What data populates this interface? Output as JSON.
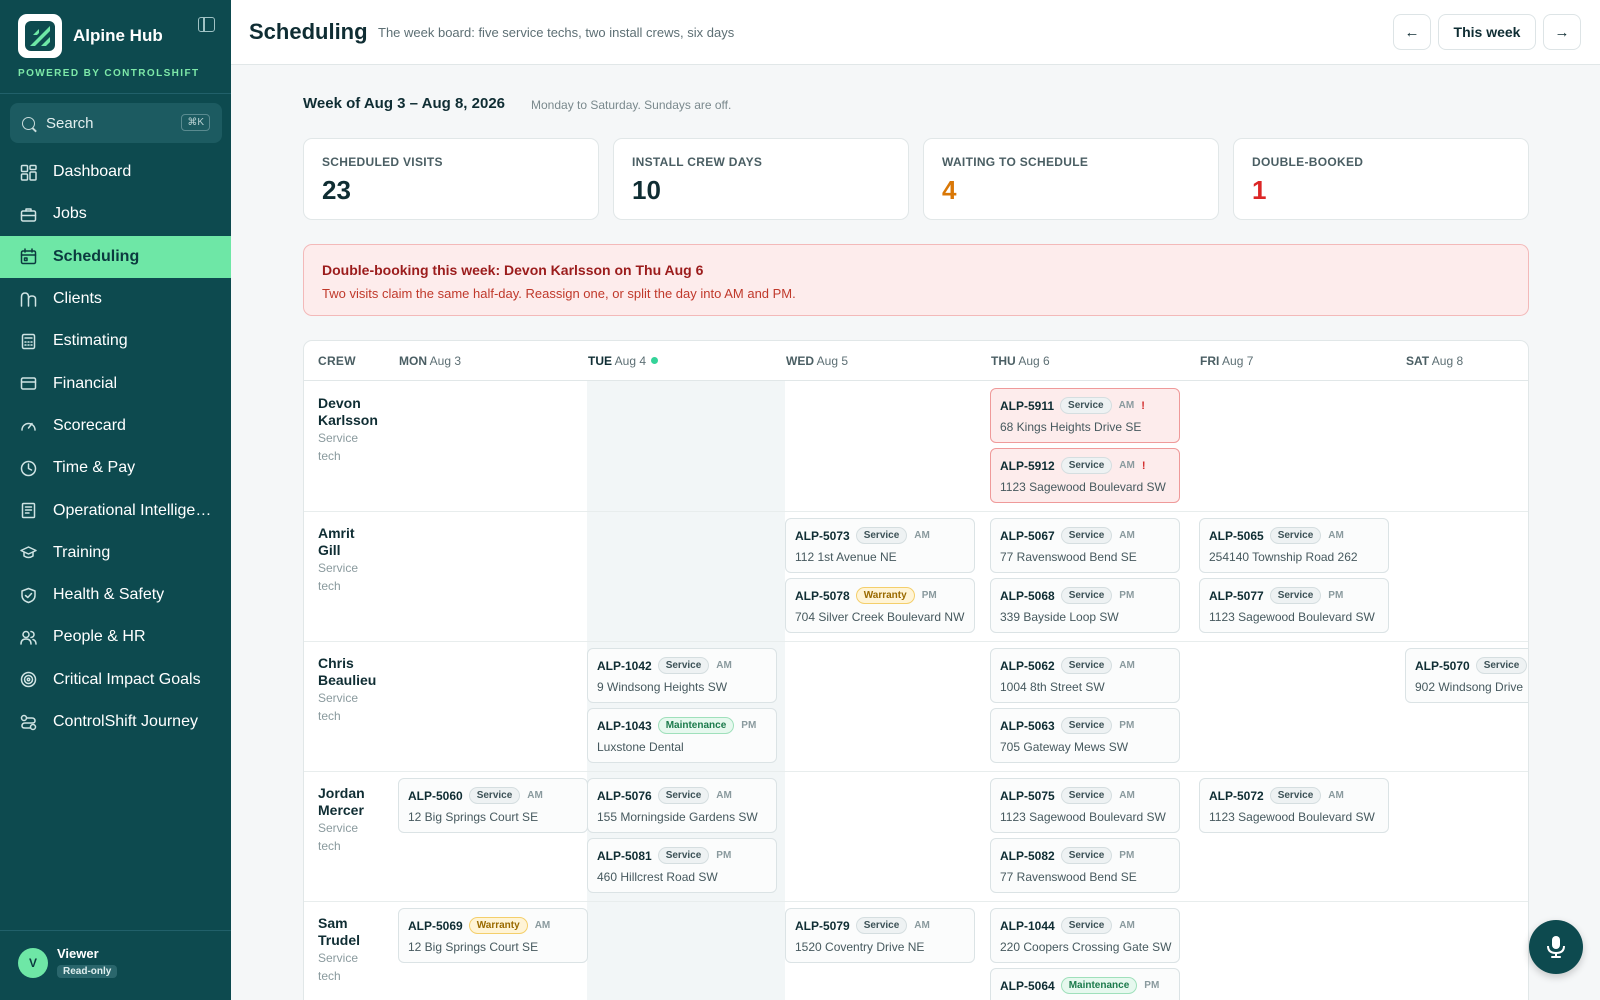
{
  "brand": {
    "name": "Alpine Hub",
    "powered_by": "POWERED BY CONTROLSHIFT"
  },
  "search": {
    "label": "Search",
    "shortcut": "⌘K"
  },
  "nav": [
    {
      "label": "Dashboard",
      "icon": "dashboard-icon"
    },
    {
      "label": "Jobs",
      "icon": "briefcase-icon"
    },
    {
      "label": "Scheduling",
      "icon": "calendar-icon",
      "active": true
    },
    {
      "label": "Clients",
      "icon": "clients-icon"
    },
    {
      "label": "Estimating",
      "icon": "calculator-icon"
    },
    {
      "label": "Financial",
      "icon": "card-icon"
    },
    {
      "label": "Scorecard",
      "icon": "gauge-icon"
    },
    {
      "label": "Time & Pay",
      "icon": "clock-icon"
    },
    {
      "label": "Operational Intellige…",
      "icon": "book-icon"
    },
    {
      "label": "Training",
      "icon": "graduation-icon"
    },
    {
      "label": "Health & Safety",
      "icon": "shield-icon"
    },
    {
      "label": "People & HR",
      "icon": "people-icon"
    },
    {
      "label": "Critical Impact Goals",
      "icon": "target-icon"
    },
    {
      "label": "ControlShift Journey",
      "icon": "route-icon"
    }
  ],
  "user": {
    "initial": "V",
    "name": "Viewer",
    "role": "Read-only"
  },
  "header": {
    "title": "Scheduling",
    "subtitle": "The week board: five service techs, two install crews, six days",
    "prev": "←",
    "this_week": "This week",
    "next": "→"
  },
  "week": {
    "title": "Week of Aug 3 – Aug 8, 2026",
    "subtitle": "Monday to Saturday. Sundays are off."
  },
  "stats": [
    {
      "label": "SCHEDULED VISITS",
      "value": "23",
      "color": "#0f2d33"
    },
    {
      "label": "INSTALL CREW DAYS",
      "value": "10",
      "color": "#0f2d33"
    },
    {
      "label": "WAITING TO SCHEDULE",
      "value": "4",
      "color": "#d97706"
    },
    {
      "label": "DOUBLE-BOOKED",
      "value": "1",
      "color": "#dc2626"
    }
  ],
  "alert": {
    "title": "Double-booking this week: Devon Karlsson on Thu Aug 6",
    "body": "Two visits claim the same half-day. Reassign one, or split the day into AM and PM."
  },
  "board": {
    "crew_header": "CREW",
    "days": [
      {
        "dow": "MON",
        "date": "Aug 3"
      },
      {
        "dow": "TUE",
        "date": "Aug 4",
        "today": true
      },
      {
        "dow": "WED",
        "date": "Aug 5"
      },
      {
        "dow": "THU",
        "date": "Aug 6"
      },
      {
        "dow": "FRI",
        "date": "Aug 7"
      },
      {
        "dow": "SAT",
        "date": "Aug 8"
      }
    ],
    "crews": [
      {
        "name_first": "Devon",
        "name_last": "Karlsson",
        "role_a": "Service",
        "role_b": "tech"
      },
      {
        "name_first": "Amrit",
        "name_last": "Gill",
        "role_a": "Service",
        "role_b": "tech"
      },
      {
        "name_first": "Chris",
        "name_last": "Beaulieu",
        "role_a": "Service",
        "role_b": "tech"
      },
      {
        "name_first": "Jordan",
        "name_last": "Mercer",
        "role_a": "Service",
        "role_b": "tech"
      },
      {
        "name_first": "Sam",
        "name_last": "Trudel",
        "role_a": "Service",
        "role_b": "tech"
      }
    ],
    "visits": [
      {
        "crew": 0,
        "day": 3,
        "slot": 0,
        "id": "ALP-5911",
        "type": "Service",
        "half": "AM",
        "address": "68 Kings Heights Drive SE",
        "conflict": true,
        "flag": "!"
      },
      {
        "crew": 0,
        "day": 3,
        "slot": 1,
        "id": "ALP-5912",
        "type": "Service",
        "half": "AM",
        "address": "1123 Sagewood Boulevard SW",
        "conflict": true,
        "flag": "!"
      },
      {
        "crew": 1,
        "day": 2,
        "slot": 0,
        "id": "ALP-5073",
        "type": "Service",
        "half": "AM",
        "address": "112 1st Avenue NE"
      },
      {
        "crew": 1,
        "day": 2,
        "slot": 1,
        "id": "ALP-5078",
        "type": "Warranty",
        "half": "PM",
        "address": "704 Silver Creek Boulevard NW"
      },
      {
        "crew": 1,
        "day": 3,
        "slot": 0,
        "id": "ALP-5067",
        "type": "Service",
        "half": "AM",
        "address": "77 Ravenswood Bend SE"
      },
      {
        "crew": 1,
        "day": 3,
        "slot": 1,
        "id": "ALP-5068",
        "type": "Service",
        "half": "PM",
        "address": "339 Bayside Loop SW"
      },
      {
        "crew": 1,
        "day": 4,
        "slot": 0,
        "id": "ALP-5065",
        "type": "Service",
        "half": "AM",
        "address": "254140 Township Road 262"
      },
      {
        "crew": 1,
        "day": 4,
        "slot": 1,
        "id": "ALP-5077",
        "type": "Service",
        "half": "PM",
        "address": "1123 Sagewood Boulevard SW"
      },
      {
        "crew": 2,
        "day": 1,
        "slot": 0,
        "id": "ALP-1042",
        "type": "Service",
        "half": "AM",
        "address": "9 Windsong Heights SW"
      },
      {
        "crew": 2,
        "day": 1,
        "slot": 1,
        "id": "ALP-1043",
        "type": "Maintenance",
        "half": "PM",
        "address": "Luxstone Dental"
      },
      {
        "crew": 2,
        "day": 3,
        "slot": 0,
        "id": "ALP-5062",
        "type": "Service",
        "half": "AM",
        "address": "1004 8th Street SW"
      },
      {
        "crew": 2,
        "day": 3,
        "slot": 1,
        "id": "ALP-5063",
        "type": "Service",
        "half": "PM",
        "address": "705 Gateway Mews SW"
      },
      {
        "crew": 2,
        "day": 5,
        "slot": 0,
        "id": "ALP-5070",
        "type": "Service",
        "half": "",
        "address": "902 Windsong Drive"
      },
      {
        "crew": 3,
        "day": 0,
        "slot": 0,
        "id": "ALP-5060",
        "type": "Service",
        "half": "AM",
        "address": "12 Big Springs Court SE"
      },
      {
        "crew": 3,
        "day": 1,
        "slot": 0,
        "id": "ALP-5076",
        "type": "Service",
        "half": "AM",
        "address": "155 Morningside Gardens SW"
      },
      {
        "crew": 3,
        "day": 1,
        "slot": 1,
        "id": "ALP-5081",
        "type": "Service",
        "half": "PM",
        "address": "460 Hillcrest Road SW"
      },
      {
        "crew": 3,
        "day": 3,
        "slot": 0,
        "id": "ALP-5075",
        "type": "Service",
        "half": "AM",
        "address": "1123 Sagewood Boulevard SW"
      },
      {
        "crew": 3,
        "day": 3,
        "slot": 1,
        "id": "ALP-5082",
        "type": "Service",
        "half": "PM",
        "address": "77 Ravenswood Bend SE"
      },
      {
        "crew": 3,
        "day": 4,
        "slot": 0,
        "id": "ALP-5072",
        "type": "Service",
        "half": "AM",
        "address": "1123 Sagewood Boulevard SW"
      },
      {
        "crew": 4,
        "day": 0,
        "slot": 0,
        "id": "ALP-5069",
        "type": "Warranty",
        "half": "AM",
        "address": "12 Big Springs Court SE"
      },
      {
        "crew": 4,
        "day": 2,
        "slot": 0,
        "id": "ALP-5079",
        "type": "Service",
        "half": "AM",
        "address": "1520 Coventry Drive NE"
      },
      {
        "crew": 4,
        "day": 3,
        "slot": 0,
        "id": "ALP-1044",
        "type": "Service",
        "half": "AM",
        "address": "220 Coopers Crossing Gate SW"
      },
      {
        "crew": 4,
        "day": 3,
        "slot": 1,
        "id": "ALP-5064",
        "type": "Maintenance",
        "half": "PM",
        "address": ""
      }
    ]
  },
  "colors": {
    "sidebar": "#0d4a4f",
    "accent": "#6ee7a6",
    "danger": "#dc2626",
    "warning": "#d97706"
  }
}
